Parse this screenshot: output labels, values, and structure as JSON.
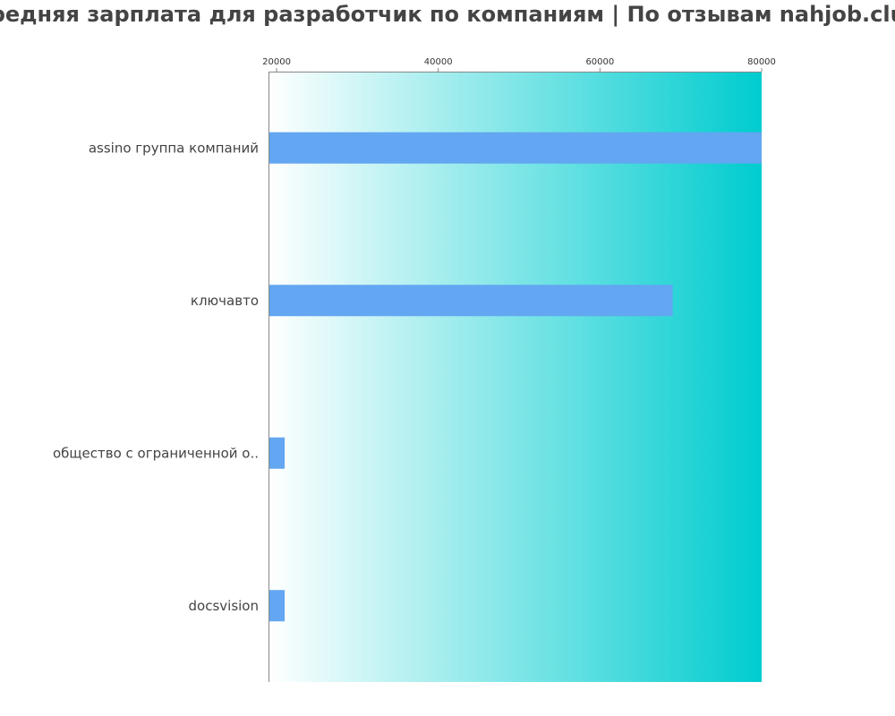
{
  "colors": {
    "bar": "#63a6f2",
    "gradient_start": "#ffffff",
    "gradient_end": "#00cccf",
    "axis": "#888888",
    "text": "#444444"
  },
  "chart_data": {
    "type": "bar",
    "orientation": "horizontal",
    "title": "Средняя зарплата для разработчик по компаниям  | По отзывам nahjob.club",
    "xlabel": "",
    "ylabel": "",
    "categories": [
      "assino группа компаний",
      "ключавто",
      "общество с ограниченной о..",
      "docsvision"
    ],
    "values": [
      80000,
      69000,
      21000,
      21000
    ],
    "xlim": [
      19000,
      80000
    ],
    "xticks": [
      20000,
      40000,
      60000,
      80000
    ],
    "tick_position": "top",
    "grid": false,
    "legend": "none"
  }
}
